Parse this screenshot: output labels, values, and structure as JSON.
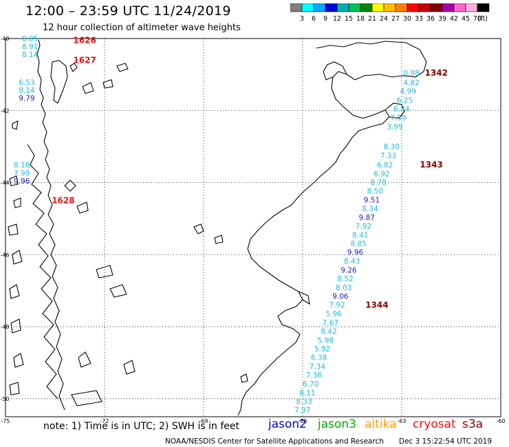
{
  "title": "12:00 – 23:59 UTC 11/24/2019",
  "subtitle": "12 hour collection of altimeter wave heights",
  "colorbar": {
    "unit": "(ft)",
    "colors": [
      "#808080",
      "#00ffff",
      "#00aaff",
      "#0000dd",
      "#00b0b0",
      "#00c060",
      "#008800",
      "#ffff00",
      "#ffc000",
      "#ff8000",
      "#ff0000",
      "#cc0000",
      "#880000",
      "#aa00aa",
      "#ff66cc",
      "#ffb0e0",
      "#000000"
    ],
    "labels": [
      "3",
      "6",
      "9",
      "12",
      "15",
      "18",
      "21",
      "24",
      "27",
      "30",
      "33",
      "36",
      "39",
      "42",
      "45",
      "70"
    ]
  },
  "map": {
    "axis_labels": [
      {
        "text": "-40",
        "ax": "y",
        "v": -40
      },
      {
        "text": "-42",
        "ax": "y",
        "v": -42
      },
      {
        "text": "-44",
        "ax": "y",
        "v": -44
      },
      {
        "text": "-46",
        "ax": "y",
        "v": -46
      },
      {
        "text": "-48",
        "ax": "y",
        "v": -48
      },
      {
        "text": "-50",
        "ax": "y",
        "v": -50
      },
      {
        "text": "-75",
        "ax": "x",
        "v": -75
      },
      {
        "text": "-72",
        "ax": "x",
        "v": -72
      },
      {
        "text": "-69",
        "ax": "x",
        "v": -69
      },
      {
        "text": "-66",
        "ax": "x",
        "v": -66
      },
      {
        "text": "-63",
        "ax": "x",
        "v": -63
      },
      {
        "text": "-60",
        "ax": "x",
        "v": -60
      }
    ],
    "passes": [
      {
        "label": "1626",
        "color": "#ee1111",
        "lon": -72.95,
        "lat": -40.05
      },
      {
        "label": "1627",
        "color": "#ee1111",
        "lon": -72.95,
        "lat": -40.6
      },
      {
        "label": "1628",
        "color": "#ee1111",
        "lon": -73.6,
        "lat": -44.5
      },
      {
        "label": "1342",
        "color": "#880000",
        "lon": -62.3,
        "lat": -40.95
      },
      {
        "label": "1343",
        "color": "#880000",
        "lon": -62.45,
        "lat": -43.5
      },
      {
        "label": "1344",
        "color": "#880000",
        "lon": -64.1,
        "lat": -47.4
      }
    ],
    "observations": [
      {
        "v": "8.05",
        "c": "#22bbdd",
        "lon": -74.5,
        "lat": -40.0
      },
      {
        "v": "8.91",
        "c": "#22bbdd",
        "lon": -74.5,
        "lat": -40.22
      },
      {
        "v": "8.14",
        "c": "#22bbdd",
        "lon": -74.5,
        "lat": -40.44
      },
      {
        "v": "6.53",
        "c": "#22bbdd",
        "lon": -74.6,
        "lat": -41.21
      },
      {
        "v": "8.14",
        "c": "#22bbdd",
        "lon": -74.6,
        "lat": -41.43
      },
      {
        "v": "9.79",
        "c": "#2222bb",
        "lon": -74.6,
        "lat": -41.65
      },
      {
        "v": "8.16",
        "c": "#22bbdd",
        "lon": -74.75,
        "lat": -43.5
      },
      {
        "v": "7.99",
        "c": "#22bbdd",
        "lon": -74.75,
        "lat": -43.73
      },
      {
        "v": "9.96",
        "c": "#2222bb",
        "lon": -74.75,
        "lat": -43.95
      },
      {
        "v": "0.98",
        "c": "#22bbdd",
        "lon": -62.95,
        "lat": -40.95
      },
      {
        "v": "4.82",
        "c": "#22bbdd",
        "lon": -62.95,
        "lat": -41.22
      },
      {
        "v": "4.99",
        "c": "#22bbdd",
        "lon": -63.05,
        "lat": -41.46
      },
      {
        "v": "6.25",
        "c": "#22bbdd",
        "lon": -63.15,
        "lat": -41.71
      },
      {
        "v": "6.84",
        "c": "#22bbdd",
        "lon": -63.25,
        "lat": -41.95
      },
      {
        "v": "7.59",
        "c": "#22bbdd",
        "lon": -63.35,
        "lat": -42.2
      },
      {
        "v": "3.99",
        "c": "#22bbdd",
        "lon": -63.45,
        "lat": -42.44
      },
      {
        "v": "8.30",
        "c": "#22bbdd",
        "lon": -63.55,
        "lat": -43.0
      },
      {
        "v": "7.33",
        "c": "#22bbdd",
        "lon": -63.65,
        "lat": -43.25
      },
      {
        "v": "6.82",
        "c": "#22bbdd",
        "lon": -63.75,
        "lat": -43.5
      },
      {
        "v": "6.92",
        "c": "#22bbdd",
        "lon": -63.85,
        "lat": -43.75
      },
      {
        "v": "8.78",
        "c": "#22bbdd",
        "lon": -63.95,
        "lat": -43.99
      },
      {
        "v": "8.50",
        "c": "#22bbdd",
        "lon": -64.05,
        "lat": -44.23
      },
      {
        "v": "9.51",
        "c": "#2222bb",
        "lon": -64.15,
        "lat": -44.48
      },
      {
        "v": "8.34",
        "c": "#22bbdd",
        "lon": -64.2,
        "lat": -44.72
      },
      {
        "v": "9.87",
        "c": "#2222bb",
        "lon": -64.3,
        "lat": -44.96
      },
      {
        "v": "7.92",
        "c": "#22bbdd",
        "lon": -64.4,
        "lat": -45.2
      },
      {
        "v": "8.41",
        "c": "#22bbdd",
        "lon": -64.5,
        "lat": -45.45
      },
      {
        "v": "8.85",
        "c": "#22bbdd",
        "lon": -64.55,
        "lat": -45.69
      },
      {
        "v": "9.96",
        "c": "#2222bb",
        "lon": -64.65,
        "lat": -45.93
      },
      {
        "v": "8.43",
        "c": "#22bbdd",
        "lon": -64.75,
        "lat": -46.18
      },
      {
        "v": "9.26",
        "c": "#2222bb",
        "lon": -64.85,
        "lat": -46.42
      },
      {
        "v": "8.52",
        "c": "#22bbdd",
        "lon": -64.95,
        "lat": -46.66
      },
      {
        "v": "8.03",
        "c": "#22bbdd",
        "lon": -65.0,
        "lat": -46.91
      },
      {
        "v": "9.06",
        "c": "#2222bb",
        "lon": -65.1,
        "lat": -47.15
      },
      {
        "v": "7.92",
        "c": "#22bbdd",
        "lon": -65.2,
        "lat": -47.39
      },
      {
        "v": "5.96",
        "c": "#22bbdd",
        "lon": -65.3,
        "lat": -47.64
      },
      {
        "v": "7.67",
        "c": "#22bbdd",
        "lon": -65.4,
        "lat": -47.88
      },
      {
        "v": "8.42",
        "c": "#22bbdd",
        "lon": -65.45,
        "lat": -48.12
      },
      {
        "v": "5.98",
        "c": "#22bbdd",
        "lon": -65.55,
        "lat": -48.37
      },
      {
        "v": "5.92",
        "c": "#22bbdd",
        "lon": -65.65,
        "lat": -48.61
      },
      {
        "v": "6.38",
        "c": "#22bbdd",
        "lon": -65.75,
        "lat": -48.85
      },
      {
        "v": "7.34",
        "c": "#22bbdd",
        "lon": -65.8,
        "lat": -49.1
      },
      {
        "v": "7.36",
        "c": "#22bbdd",
        "lon": -65.9,
        "lat": -49.34
      },
      {
        "v": "6.70",
        "c": "#22bbdd",
        "lon": -66.0,
        "lat": -49.58
      },
      {
        "v": "8.11",
        "c": "#22bbdd",
        "lon": -66.1,
        "lat": -49.83
      },
      {
        "v": "8.33",
        "c": "#22bbdd",
        "lon": -66.2,
        "lat": -50.07
      },
      {
        "v": "7.97",
        "c": "#22bbdd",
        "lon": -66.25,
        "lat": -50.31
      }
    ]
  },
  "note": "note: 1) Time is in UTC; 2) SWH is in feet",
  "legend": [
    {
      "name": "jason2",
      "color": "#0000dd"
    },
    {
      "name": "jason3",
      "color": "#00aa00"
    },
    {
      "name": "altika",
      "color": "#ffa000"
    },
    {
      "name": "cryosat",
      "color": "#ee1111"
    },
    {
      "name": "s3a",
      "color": "#880000"
    }
  ],
  "credit": "NOAA/NESDIS Center for Satellite Applications and Research",
  "timestamp": "Dec  3 15:22:54 UTC 2019"
}
